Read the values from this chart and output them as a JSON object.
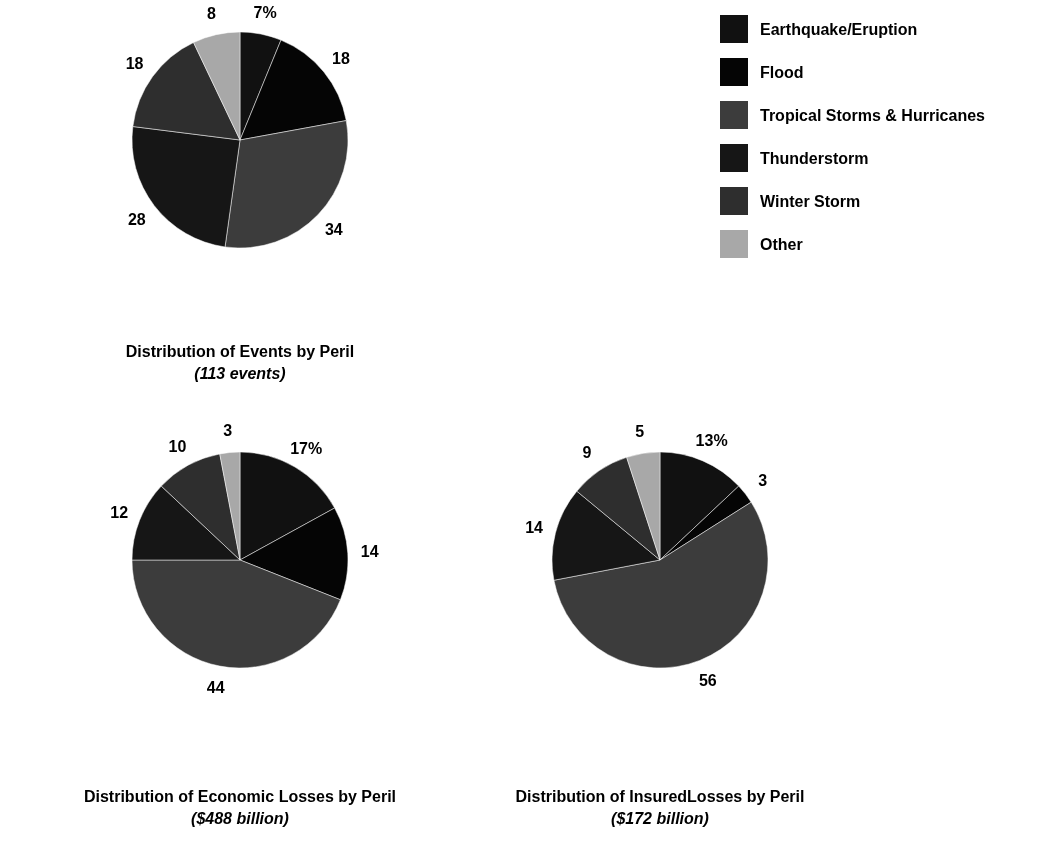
{
  "chart_data": [
    {
      "type": "pie",
      "title": "Distribution of Events by Peril",
      "subtitle": "(113 events)",
      "categories": [
        "Earthquake/Eruption",
        "Flood",
        "Tropical Storms & Hurricanes",
        "Thunderstorm",
        "Winter Storm",
        "Other"
      ],
      "values": [
        7,
        18,
        34,
        28,
        18,
        8
      ],
      "value_labels": [
        "7%",
        "18",
        "34",
        "28",
        "18",
        "8"
      ],
      "colors": [
        "#111111",
        "#050505",
        "#3c3c3c",
        "#161616",
        "#2e2e2e",
        "#a8a8a8"
      ],
      "legend": "right"
    },
    {
      "type": "pie",
      "title": "Distribution of Economic Losses by Peril",
      "subtitle": "($488 billion)",
      "categories": [
        null,
        null,
        null,
        null,
        null,
        null
      ],
      "values": [
        17,
        14,
        44,
        12,
        10,
        3
      ],
      "value_labels": [
        "17%",
        "14",
        "44",
        "12",
        "10",
        "3"
      ],
      "colors": [
        "#111111",
        "#050505",
        "#3c3c3c",
        "#161616",
        "#2e2e2e",
        "#a8a8a8"
      ]
    },
    {
      "type": "pie",
      "title": "Distribution of InsuredLosses by Peril",
      "subtitle": "($172 billion)",
      "categories": [
        null,
        null,
        null,
        null,
        null,
        null
      ],
      "values": [
        13,
        3,
        56,
        14,
        9,
        5
      ],
      "value_labels": [
        "13%",
        "3",
        "56",
        "14",
        "9",
        "5"
      ],
      "colors": [
        "#111111",
        "#050505",
        "#3c3c3c",
        "#161616",
        "#2e2e2e",
        "#a8a8a8"
      ]
    }
  ]
}
